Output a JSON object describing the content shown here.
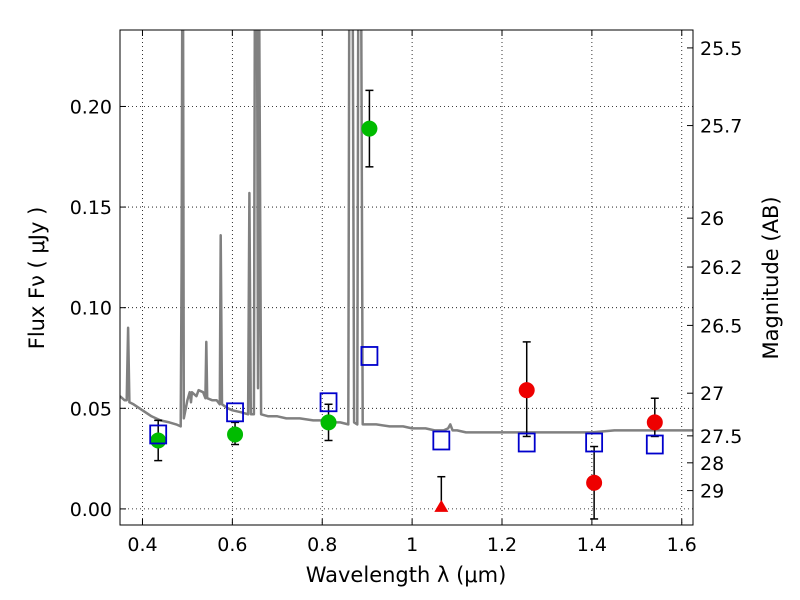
{
  "chart_data": {
    "type": "scatter",
    "title": "",
    "xlabel": "Wavelength  λ (μm)",
    "ylabel_left": "Flux  Fν  ( μJy )",
    "ylabel_right": "Magnitude (AB)",
    "xlim": [
      0.35,
      1.625
    ],
    "ylim": [
      -0.008,
      0.238
    ],
    "x_ticks": [
      0.4,
      0.6,
      0.8,
      1.0,
      1.2,
      1.4,
      1.6
    ],
    "x_tick_labels": [
      "0.4",
      "0.6",
      "0.8",
      "1",
      "1.2",
      "1.4",
      "1.6"
    ],
    "y_ticks": [
      0.0,
      0.05,
      0.1,
      0.15,
      0.2
    ],
    "y_tick_labels": [
      "0.00",
      "0.05",
      "0.10",
      "0.15",
      "0.20"
    ],
    "right_ticks": [
      {
        "flux": 0.2291,
        "label": "25.5"
      },
      {
        "flux": 0.1905,
        "label": "25.7"
      },
      {
        "flux": 0.1445,
        "label": "26"
      },
      {
        "flux": 0.1202,
        "label": "26.2"
      },
      {
        "flux": 0.0912,
        "label": "26.5"
      },
      {
        "flux": 0.0575,
        "label": "27"
      },
      {
        "flux": 0.0363,
        "label": "27.5"
      },
      {
        "flux": 0.0229,
        "label": "28"
      },
      {
        "flux": 0.0091,
        "label": "29"
      }
    ],
    "grid": true,
    "colors": {
      "hst": "#00bb00",
      "irac": "#ee0000",
      "model_points": "#0000cc",
      "model_curve": "#808080",
      "errorbar": "#000000"
    },
    "series": [
      {
        "marker": "circle-green",
        "points": [
          {
            "x": 0.435,
            "y": 0.034,
            "yerr_lo": 0.01,
            "yerr_hi": 0.01
          },
          {
            "x": 0.606,
            "y": 0.037,
            "yerr_lo": 0.005,
            "yerr_hi": 0.006
          },
          {
            "x": 0.814,
            "y": 0.043,
            "yerr_lo": 0.009,
            "yerr_hi": 0.009
          },
          {
            "x": 0.905,
            "y": 0.189,
            "yerr_lo": 0.019,
            "yerr_hi": 0.019
          }
        ]
      },
      {
        "marker": "circle-red",
        "points": [
          {
            "x": 1.255,
            "y": 0.059,
            "yerr_lo": 0.023,
            "yerr_hi": 0.024
          },
          {
            "x": 1.405,
            "y": 0.013,
            "yerr_lo": 0.018,
            "yerr_hi": 0.018
          },
          {
            "x": 1.54,
            "y": 0.043,
            "yerr_lo": 0.007,
            "yerr_hi": 0.012
          }
        ]
      },
      {
        "marker": "triangle-red",
        "points": [
          {
            "x": 1.065,
            "y": 0.0,
            "yerr_lo": 0.0,
            "yerr_hi": 0.016
          }
        ]
      },
      {
        "marker": "square-blue",
        "points": [
          {
            "x": 0.435,
            "y": 0.037
          },
          {
            "x": 0.606,
            "y": 0.048
          },
          {
            "x": 0.814,
            "y": 0.053
          },
          {
            "x": 0.905,
            "y": 0.076
          },
          {
            "x": 1.065,
            "y": 0.034
          },
          {
            "x": 1.255,
            "y": 0.033
          },
          {
            "x": 1.405,
            "y": 0.033
          },
          {
            "x": 1.54,
            "y": 0.032
          }
        ]
      }
    ],
    "model_curve": [
      [
        0.35,
        0.056
      ],
      [
        0.36,
        0.054
      ],
      [
        0.365,
        0.054
      ],
      [
        0.368,
        0.09
      ],
      [
        0.371,
        0.053
      ],
      [
        0.38,
        0.052
      ],
      [
        0.4,
        0.049
      ],
      [
        0.42,
        0.046
      ],
      [
        0.44,
        0.044
      ],
      [
        0.46,
        0.043
      ],
      [
        0.475,
        0.042
      ],
      [
        0.485,
        0.041
      ],
      [
        0.487,
        0.12
      ],
      [
        0.4885,
        0.24
      ],
      [
        0.4905,
        0.24
      ],
      [
        0.492,
        0.045
      ],
      [
        0.5,
        0.054
      ],
      [
        0.505,
        0.058
      ],
      [
        0.508,
        0.053
      ],
      [
        0.51,
        0.058
      ],
      [
        0.52,
        0.056
      ],
      [
        0.525,
        0.059
      ],
      [
        0.535,
        0.058
      ],
      [
        0.54,
        0.055
      ],
      [
        0.542,
        0.083
      ],
      [
        0.544,
        0.055
      ],
      [
        0.555,
        0.054
      ],
      [
        0.565,
        0.054
      ],
      [
        0.572,
        0.052
      ],
      [
        0.574,
        0.136
      ],
      [
        0.577,
        0.052
      ],
      [
        0.59,
        0.05
      ],
      [
        0.6,
        0.049
      ],
      [
        0.62,
        0.048
      ],
      [
        0.635,
        0.047
      ],
      [
        0.638,
        0.157
      ],
      [
        0.641,
        0.047
      ],
      [
        0.648,
        0.047
      ],
      [
        0.65,
        0.24
      ],
      [
        0.655,
        0.24
      ],
      [
        0.657,
        0.06
      ],
      [
        0.66,
        0.24
      ],
      [
        0.664,
        0.047
      ],
      [
        0.68,
        0.046
      ],
      [
        0.7,
        0.046
      ],
      [
        0.72,
        0.045
      ],
      [
        0.75,
        0.045
      ],
      [
        0.78,
        0.044
      ],
      [
        0.8,
        0.044
      ],
      [
        0.82,
        0.043
      ],
      [
        0.84,
        0.043
      ],
      [
        0.858,
        0.042
      ],
      [
        0.86,
        0.24
      ],
      [
        0.868,
        0.24
      ],
      [
        0.871,
        0.043
      ],
      [
        0.878,
        0.042
      ],
      [
        0.88,
        0.24
      ],
      [
        0.887,
        0.24
      ],
      [
        0.89,
        0.042
      ],
      [
        0.92,
        0.042
      ],
      [
        0.95,
        0.041
      ],
      [
        0.98,
        0.041
      ],
      [
        1.0,
        0.04
      ],
      [
        1.03,
        0.04
      ],
      [
        1.05,
        0.039
      ],
      [
        1.07,
        0.039
      ],
      [
        1.08,
        0.04
      ],
      [
        1.085,
        0.042
      ],
      [
        1.09,
        0.039
      ],
      [
        1.1,
        0.039
      ],
      [
        1.12,
        0.038
      ],
      [
        1.15,
        0.038
      ],
      [
        1.18,
        0.038
      ],
      [
        1.2,
        0.038
      ],
      [
        1.25,
        0.038
      ],
      [
        1.3,
        0.038
      ],
      [
        1.35,
        0.038
      ],
      [
        1.4,
        0.038
      ],
      [
        1.45,
        0.039
      ],
      [
        1.5,
        0.039
      ],
      [
        1.55,
        0.039
      ],
      [
        1.6,
        0.039
      ],
      [
        1.625,
        0.039
      ]
    ]
  }
}
